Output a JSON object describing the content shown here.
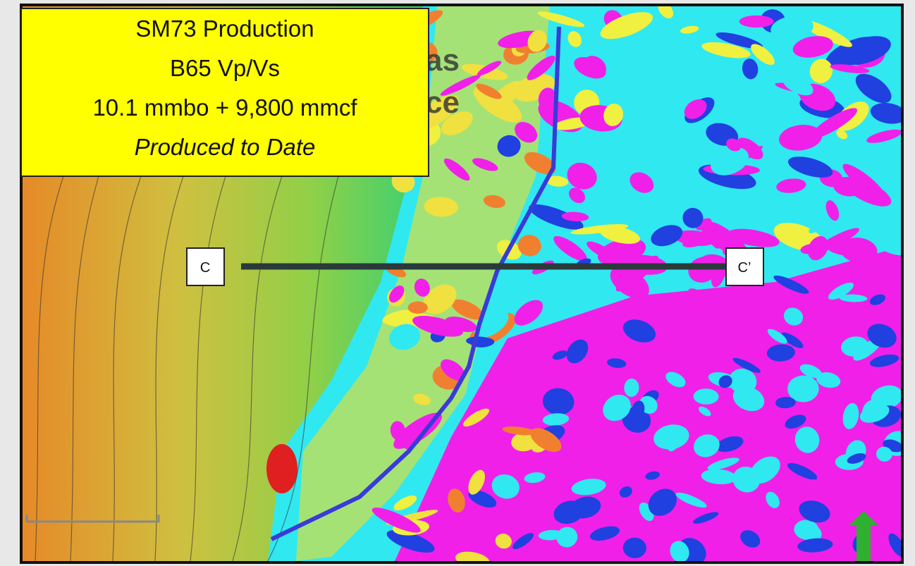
{
  "info_box": {
    "lines": [
      "SM73 Production",
      "B65 Vp/Vs",
      "10.1 mmbo + 9,800 mmcf"
    ],
    "note": "Produced to Date"
  },
  "section": {
    "start_label": "C",
    "end_label": "C’"
  },
  "map_labels": [
    "as",
    "ce"
  ]
}
